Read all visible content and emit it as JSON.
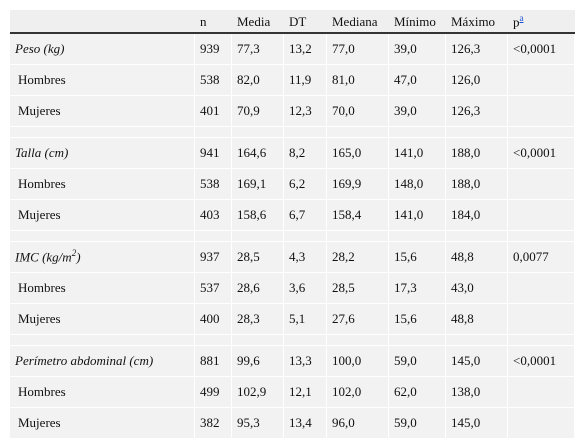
{
  "header": {
    "variable": "",
    "n": "n",
    "media": "Media",
    "dt": "DT",
    "mediana": "Mediana",
    "minimo": "Mínimo",
    "maximo": "Máximo",
    "p": "p",
    "p_footnote": "a"
  },
  "groups": [
    {
      "name": "Peso (kg)",
      "total": {
        "n": "939",
        "media": "77,3",
        "dt": "13,2",
        "mediana": "77,0",
        "minimo": "39,0",
        "maximo": "126,3",
        "p": "<0,0001"
      },
      "men": {
        "label": "Hombres",
        "n": "538",
        "media": "82,0",
        "dt": "11,9",
        "mediana": "81,0",
        "minimo": "47,0",
        "maximo": "126,0",
        "p": ""
      },
      "women": {
        "label": "Mujeres",
        "n": "401",
        "media": "70,9",
        "dt": "12,3",
        "mediana": "70,0",
        "minimo": "39,0",
        "maximo": "126,3",
        "p": ""
      }
    },
    {
      "name": "Talla (cm)",
      "total": {
        "n": "941",
        "media": "164,6",
        "dt": "8,2",
        "mediana": "165,0",
        "minimo": "141,0",
        "maximo": "188,0",
        "p": "<0,0001"
      },
      "men": {
        "label": "Hombres",
        "n": "538",
        "media": "169,1",
        "dt": "6,2",
        "mediana": "169,9",
        "minimo": "148,0",
        "maximo": "188,0",
        "p": ""
      },
      "women": {
        "label": "Mujeres",
        "n": "403",
        "media": "158,6",
        "dt": "6,7",
        "mediana": "158,4",
        "minimo": "141,0",
        "maximo": "184,0",
        "p": ""
      }
    },
    {
      "name": "IMC (kg/m",
      "name_sup": "2",
      "name_suffix": ")",
      "total": {
        "n": "937",
        "media": "28,5",
        "dt": "4,3",
        "mediana": "28,2",
        "minimo": "15,6",
        "maximo": "48,8",
        "p": "0,0077"
      },
      "men": {
        "label": "Hombres",
        "n": "537",
        "media": "28,6",
        "dt": "3,6",
        "mediana": "28,5",
        "minimo": "17,3",
        "maximo": "43,0",
        "p": ""
      },
      "women": {
        "label": "Mujeres",
        "n": "400",
        "media": "28,3",
        "dt": "5,1",
        "mediana": "27,6",
        "minimo": "15,6",
        "maximo": "48,8",
        "p": ""
      }
    },
    {
      "name": "Perímetro abdominal (cm)",
      "total": {
        "n": "881",
        "media": "99,6",
        "dt": "13,3",
        "mediana": "100,0",
        "minimo": "59,0",
        "maximo": "145,0",
        "p": "<0,0001"
      },
      "men": {
        "label": "Hombres",
        "n": "499",
        "media": "102,9",
        "dt": "12,1",
        "mediana": "102,0",
        "minimo": "62,0",
        "maximo": "138,0",
        "p": ""
      },
      "women": {
        "label": "Mujeres",
        "n": "382",
        "media": "95,3",
        "dt": "13,4",
        "mediana": "96,0",
        "minimo": "59,0",
        "maximo": "145,0",
        "p": ""
      }
    }
  ]
}
